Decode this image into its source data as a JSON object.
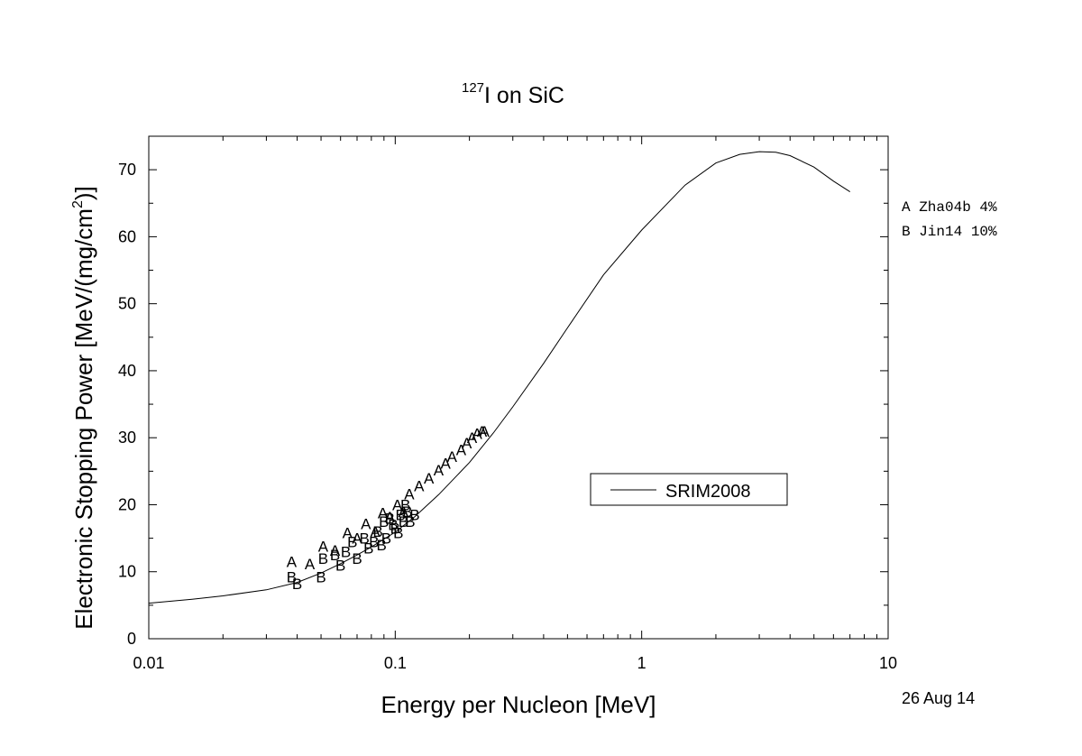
{
  "chart_data": {
    "type": "scatter",
    "title": {
      "prefix": "127",
      "main": "I on SiC"
    },
    "xlabel": "Energy per Nucleon [MeV]",
    "ylabel": {
      "main": "Electronic Stopping Power [MeV/(mg/cm",
      "superscript": "2",
      "suffix": ")]"
    },
    "xscale": "log",
    "xlim": [
      0.01,
      10
    ],
    "ylim": [
      0,
      75
    ],
    "x_ticks": [
      {
        "value": 0.01,
        "label": "0.01"
      },
      {
        "value": 0.1,
        "label": "0.1"
      },
      {
        "value": 1,
        "label": "1"
      },
      {
        "value": 10,
        "label": "10"
      }
    ],
    "y_ticks": [
      0,
      10,
      20,
      30,
      40,
      50,
      60,
      70
    ],
    "legend": {
      "position": "center-right",
      "entries": [
        {
          "label": "SRIM2008",
          "style": "line"
        }
      ]
    },
    "series_legend": [
      {
        "marker": "A",
        "label": "A Zha04b 4%"
      },
      {
        "marker": "B",
        "label": "B Jin14 10%"
      }
    ],
    "line_series": {
      "name": "SRIM2008",
      "x": [
        0.01,
        0.015,
        0.02,
        0.03,
        0.04,
        0.05,
        0.06,
        0.07,
        0.08,
        0.1,
        0.12,
        0.15,
        0.2,
        0.25,
        0.3,
        0.4,
        0.5,
        0.7,
        1.0,
        1.5,
        2.0,
        2.5,
        3.0,
        3.5,
        4.0,
        5.0,
        6.0,
        7.0
      ],
      "y": [
        5.3,
        5.9,
        6.4,
        7.3,
        8.4,
        9.8,
        11.2,
        12.5,
        13.7,
        15.9,
        18.2,
        21.5,
        26.3,
        30.7,
        34.6,
        41.1,
        46.4,
        54.3,
        61.0,
        67.7,
        71.0,
        72.3,
        72.7,
        72.6,
        72.1,
        70.4,
        68.3,
        66.7
      ]
    },
    "scatter_series": [
      {
        "name": "Zha04b 4%",
        "marker": "A",
        "x": [
          0.038,
          0.045,
          0.051,
          0.057,
          0.064,
          0.07,
          0.076,
          0.083,
          0.089,
          0.095,
          0.102,
          0.108,
          0.114,
          0.125,
          0.137,
          0.15,
          0.16,
          0.17,
          0.185,
          0.195,
          0.205,
          0.215,
          0.225,
          0.23
        ],
        "y": [
          11.5,
          11.2,
          13.8,
          13.2,
          15.8,
          15.0,
          17.2,
          16.0,
          18.8,
          18.2,
          20.0,
          19.0,
          21.6,
          22.8,
          24.0,
          25.2,
          26.2,
          27.2,
          28.2,
          29.2,
          30.0,
          30.6,
          31.0,
          31.0
        ]
      },
      {
        "name": "Jin14 10%",
        "marker": "B",
        "x": [
          0.038,
          0.04,
          0.05,
          0.051,
          0.057,
          0.06,
          0.063,
          0.067,
          0.07,
          0.075,
          0.078,
          0.082,
          0.085,
          0.088,
          0.09,
          0.092,
          0.095,
          0.098,
          0.1,
          0.103,
          0.105,
          0.108,
          0.11,
          0.112,
          0.115,
          0.12
        ],
        "y": [
          9.2,
          8.2,
          9.2,
          12.0,
          12.5,
          11.0,
          13.0,
          14.5,
          12.0,
          15.0,
          13.5,
          14.5,
          16.0,
          14.0,
          17.5,
          15.0,
          18.0,
          17.0,
          16.5,
          15.8,
          18.5,
          17.5,
          20.0,
          19.0,
          17.5,
          18.5
        ]
      }
    ],
    "date_stamp": "26 Aug 14"
  }
}
